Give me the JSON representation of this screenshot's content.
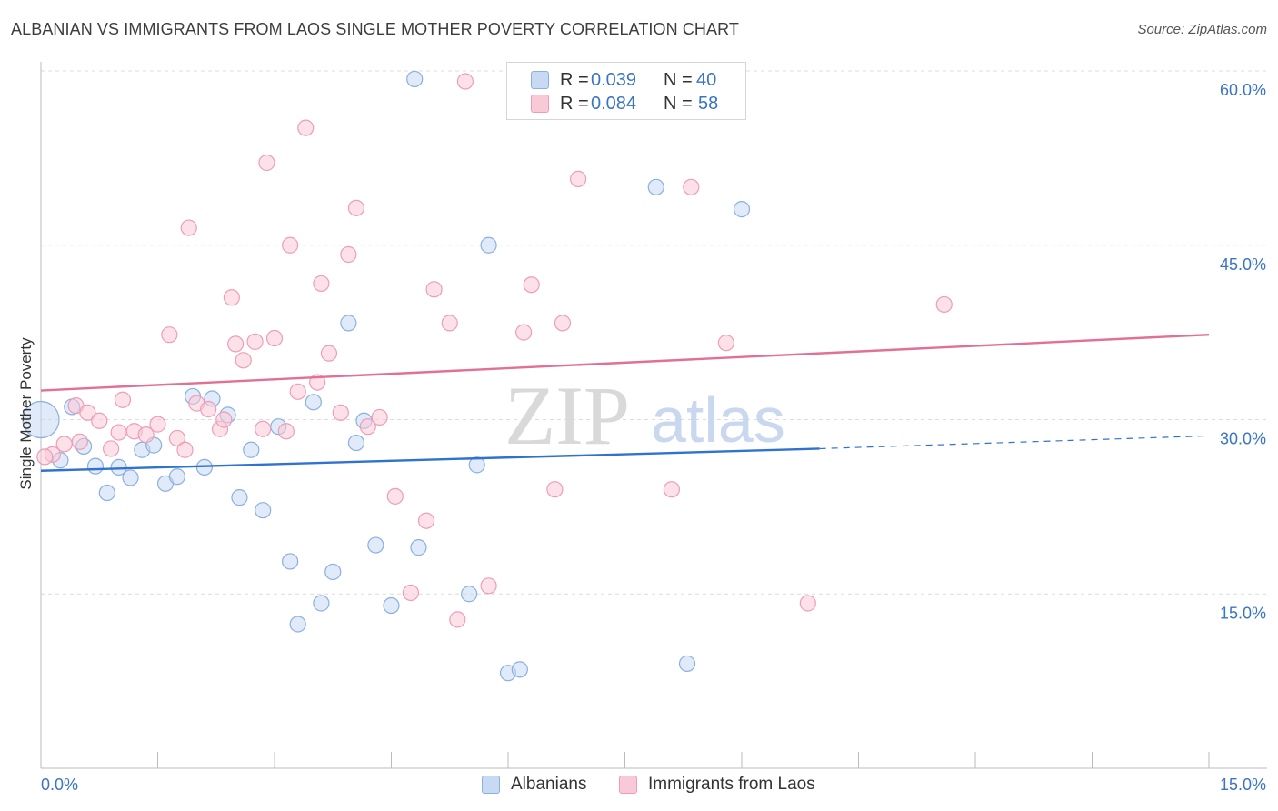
{
  "title": "ALBANIAN VS IMMIGRANTS FROM LAOS SINGLE MOTHER POVERTY CORRELATION CHART",
  "source": "Source: ZipAtlas.com",
  "watermark": {
    "zip": "ZIP",
    "atlas": "atlas"
  },
  "legend": {
    "r_label": "R =",
    "n_label": "N =",
    "items": [
      {
        "name": "Albanians",
        "r": "0.039",
        "n": "40",
        "fill": "#c7d9f3",
        "stroke": "#8ab0e0"
      },
      {
        "name": "Immigrants from Laos",
        "r": "0.084",
        "n": "58",
        "fill": "#f9c9d7",
        "stroke": "#ee9db7"
      }
    ]
  },
  "chart_data": {
    "type": "scatter",
    "title": "ALBANIAN VS IMMIGRANTS FROM LAOS SINGLE MOTHER POVERTY CORRELATION CHART",
    "xlabel": "",
    "ylabel": "Single Mother Poverty",
    "xlim": [
      0,
      15
    ],
    "ylim": [
      0,
      60
    ],
    "x_tick_labels": [
      "0.0%",
      "15.0%"
    ],
    "y_ticks": [
      15,
      30,
      45,
      60
    ],
    "y_tick_labels": [
      "15.0%",
      "30.0%",
      "45.0%",
      "60.0%"
    ],
    "grid": true,
    "legend_position": "top-center",
    "series": [
      {
        "name": "Albanians",
        "color": "#8ab0e0",
        "line_color": "#2f72d0",
        "trend": {
          "x": [
            0,
            10.0
          ],
          "y": [
            25.6,
            27.5
          ],
          "dashed_to": [
            15,
            28.6
          ]
        },
        "points": [
          {
            "x": 0.0,
            "y": 30.0,
            "big": true
          },
          {
            "x": 0.25,
            "y": 26.5
          },
          {
            "x": 0.4,
            "y": 31.1
          },
          {
            "x": 0.55,
            "y": 27.7
          },
          {
            "x": 0.7,
            "y": 26.0
          },
          {
            "x": 0.85,
            "y": 23.7
          },
          {
            "x": 1.0,
            "y": 25.9
          },
          {
            "x": 1.15,
            "y": 25.0
          },
          {
            "x": 1.3,
            "y": 27.4
          },
          {
            "x": 1.45,
            "y": 27.8
          },
          {
            "x": 1.6,
            "y": 24.5
          },
          {
            "x": 1.75,
            "y": 25.1
          },
          {
            "x": 1.95,
            "y": 32.0
          },
          {
            "x": 2.1,
            "y": 25.9
          },
          {
            "x": 2.2,
            "y": 31.8
          },
          {
            "x": 2.4,
            "y": 30.4
          },
          {
            "x": 2.55,
            "y": 23.3
          },
          {
            "x": 2.7,
            "y": 27.4
          },
          {
            "x": 2.85,
            "y": 22.2
          },
          {
            "x": 3.05,
            "y": 29.4
          },
          {
            "x": 3.2,
            "y": 17.8
          },
          {
            "x": 3.3,
            "y": 12.4
          },
          {
            "x": 3.5,
            "y": 31.5
          },
          {
            "x": 3.6,
            "y": 14.2
          },
          {
            "x": 3.75,
            "y": 16.9
          },
          {
            "x": 3.95,
            "y": 38.3
          },
          {
            "x": 4.05,
            "y": 28.0
          },
          {
            "x": 4.15,
            "y": 29.9
          },
          {
            "x": 4.3,
            "y": 19.2
          },
          {
            "x": 4.5,
            "y": 14.0
          },
          {
            "x": 4.8,
            "y": 59.3
          },
          {
            "x": 4.85,
            "y": 19.0
          },
          {
            "x": 5.5,
            "y": 15.0
          },
          {
            "x": 5.6,
            "y": 26.1
          },
          {
            "x": 5.75,
            "y": 45.0
          },
          {
            "x": 6.0,
            "y": 8.2
          },
          {
            "x": 6.15,
            "y": 8.5
          },
          {
            "x": 7.9,
            "y": 50.0
          },
          {
            "x": 8.3,
            "y": 9.0
          },
          {
            "x": 9.0,
            "y": 48.1
          }
        ]
      },
      {
        "name": "Immigrants from Laos",
        "color": "#ee9db7",
        "line_color": "#e27095",
        "trend": {
          "x": [
            0,
            15
          ],
          "y": [
            32.5,
            37.3
          ]
        },
        "points": [
          {
            "x": 0.15,
            "y": 27.0
          },
          {
            "x": 0.3,
            "y": 27.9
          },
          {
            "x": 0.45,
            "y": 31.2
          },
          {
            "x": 0.6,
            "y": 30.6
          },
          {
            "x": 0.75,
            "y": 29.9
          },
          {
            "x": 0.9,
            "y": 27.5
          },
          {
            "x": 1.05,
            "y": 31.7
          },
          {
            "x": 1.2,
            "y": 29.0
          },
          {
            "x": 1.35,
            "y": 28.7
          },
          {
            "x": 1.5,
            "y": 29.6
          },
          {
            "x": 1.65,
            "y": 37.3
          },
          {
            "x": 1.75,
            "y": 28.4
          },
          {
            "x": 1.85,
            "y": 27.4
          },
          {
            "x": 1.9,
            "y": 46.5
          },
          {
            "x": 2.0,
            "y": 31.4
          },
          {
            "x": 2.15,
            "y": 30.9
          },
          {
            "x": 2.3,
            "y": 29.2
          },
          {
            "x": 2.45,
            "y": 40.5
          },
          {
            "x": 2.5,
            "y": 36.5
          },
          {
            "x": 2.6,
            "y": 35.1
          },
          {
            "x": 2.75,
            "y": 36.7
          },
          {
            "x": 2.85,
            "y": 29.2
          },
          {
            "x": 2.9,
            "y": 52.1
          },
          {
            "x": 3.0,
            "y": 37.0
          },
          {
            "x": 3.15,
            "y": 29.0
          },
          {
            "x": 3.2,
            "y": 45.0
          },
          {
            "x": 3.3,
            "y": 32.4
          },
          {
            "x": 3.4,
            "y": 55.1
          },
          {
            "x": 3.55,
            "y": 33.2
          },
          {
            "x": 3.6,
            "y": 41.7
          },
          {
            "x": 3.7,
            "y": 35.7
          },
          {
            "x": 3.85,
            "y": 30.6
          },
          {
            "x": 3.95,
            "y": 44.2
          },
          {
            "x": 4.05,
            "y": 48.2
          },
          {
            "x": 4.2,
            "y": 29.4
          },
          {
            "x": 4.35,
            "y": 30.2
          },
          {
            "x": 4.55,
            "y": 23.4
          },
          {
            "x": 4.75,
            "y": 15.1
          },
          {
            "x": 4.95,
            "y": 21.3
          },
          {
            "x": 5.05,
            "y": 41.2
          },
          {
            "x": 5.25,
            "y": 38.3
          },
          {
            "x": 5.35,
            "y": 12.8
          },
          {
            "x": 5.45,
            "y": 59.1
          },
          {
            "x": 5.75,
            "y": 15.7
          },
          {
            "x": 6.2,
            "y": 37.5
          },
          {
            "x": 6.3,
            "y": 41.6
          },
          {
            "x": 6.6,
            "y": 24.0
          },
          {
            "x": 6.7,
            "y": 38.3
          },
          {
            "x": 6.9,
            "y": 50.7
          },
          {
            "x": 8.1,
            "y": 24.0
          },
          {
            "x": 8.35,
            "y": 50.0
          },
          {
            "x": 8.8,
            "y": 36.6
          },
          {
            "x": 9.85,
            "y": 14.2
          },
          {
            "x": 11.6,
            "y": 39.9
          },
          {
            "x": 0.05,
            "y": 26.8
          },
          {
            "x": 0.5,
            "y": 28.1
          },
          {
            "x": 1.0,
            "y": 28.9
          },
          {
            "x": 2.35,
            "y": 30.0
          }
        ]
      }
    ]
  }
}
